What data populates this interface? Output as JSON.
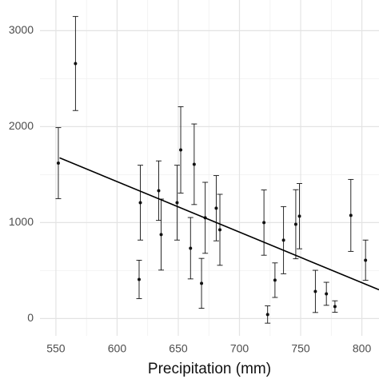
{
  "chart_data": {
    "type": "scatter",
    "x_label": "Precipitation (mm)",
    "x": [
      552,
      566,
      619,
      618,
      634,
      636,
      649,
      652,
      660,
      663,
      669,
      672,
      681,
      684,
      720,
      723,
      729,
      736,
      746,
      749,
      762,
      771,
      778,
      791,
      803
    ],
    "values": [
      1620,
      2658,
      1208,
      408,
      1333,
      875,
      1208,
      1758,
      733,
      1608,
      367,
      1050,
      1150,
      925,
      1000,
      42,
      400,
      817,
      983,
      1067,
      283,
      258,
      125,
      1075,
      608
    ],
    "errors": [
      370,
      490,
      390,
      200,
      310,
      370,
      390,
      450,
      320,
      420,
      260,
      370,
      340,
      370,
      340,
      90,
      180,
      350,
      360,
      340,
      220,
      120,
      60,
      375,
      210
    ],
    "color": "#111111",
    "fit": {
      "x": [
        553,
        814
      ],
      "values": [
        1675,
        300
      ],
      "color": "#000000"
    },
    "xlim": [
      537,
      814
    ],
    "ylim": [
      -180,
      3320
    ],
    "xticks": [
      550,
      600,
      650,
      700,
      750,
      800
    ],
    "yticks": [
      0,
      1000,
      2000,
      3000
    ],
    "x_minor_ticks": [
      575,
      625,
      675,
      725,
      775
    ],
    "y_minor_ticks": [
      500,
      1500,
      2500
    ],
    "grid": true
  }
}
